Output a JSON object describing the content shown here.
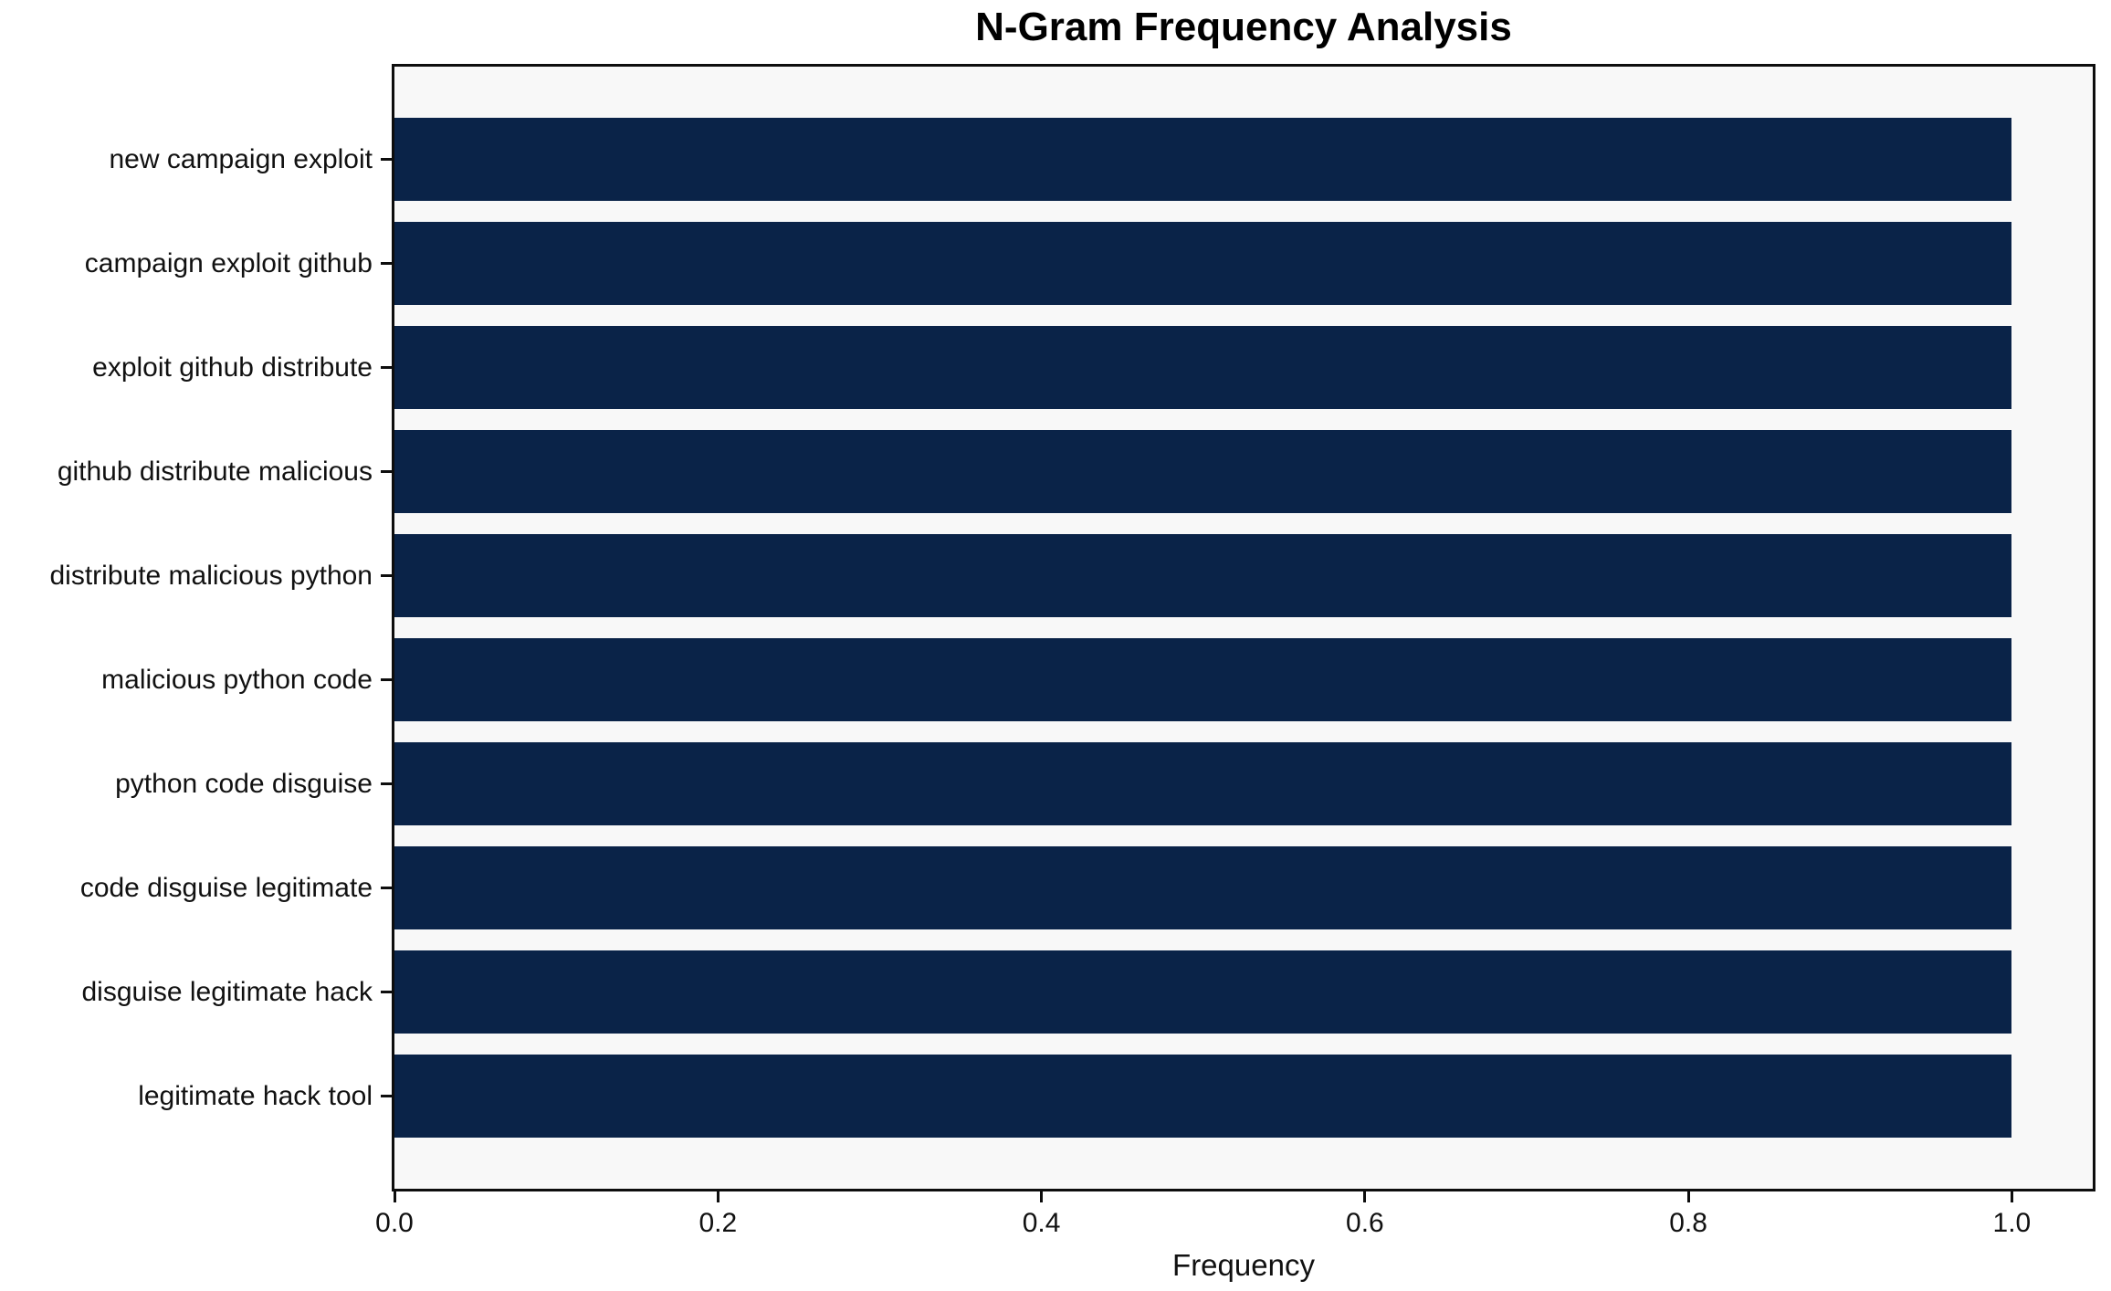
{
  "chart_data": {
    "type": "bar",
    "orientation": "horizontal",
    "title": "N-Gram Frequency Analysis",
    "xlabel": "Frequency",
    "ylabel": "",
    "categories": [
      "new campaign exploit",
      "campaign exploit github",
      "exploit github distribute",
      "github distribute malicious",
      "distribute malicious python",
      "malicious python code",
      "python code disguise",
      "code disguise legitimate",
      "disguise legitimate hack",
      "legitimate hack tool"
    ],
    "values": [
      1.0,
      1.0,
      1.0,
      1.0,
      1.0,
      1.0,
      1.0,
      1.0,
      1.0,
      1.0
    ],
    "xticks": [
      0.0,
      0.2,
      0.4,
      0.6,
      0.8,
      1.0
    ],
    "xtick_labels": [
      "0.0",
      "0.2",
      "0.4",
      "0.6",
      "0.8",
      "1.0"
    ],
    "xlim": [
      0,
      1.05
    ],
    "grid": false,
    "legend": null,
    "colors": {
      "bar": "#0a2348",
      "plot_background": "#f8f8f8",
      "figure_background": "#ffffff",
      "spine": "#0d0d0d",
      "text": "#111111"
    }
  }
}
